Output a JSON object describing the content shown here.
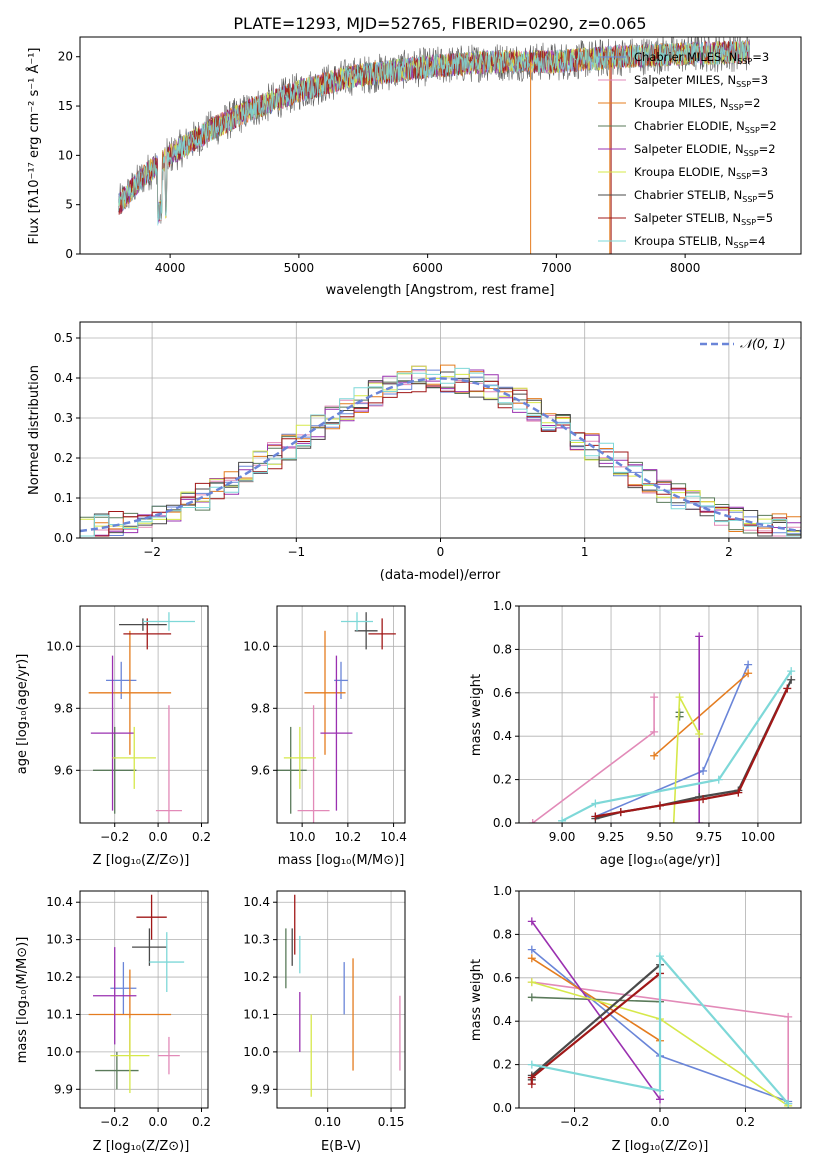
{
  "title": "PLATE=1293, MJD=52765, FIBERID=0290, z=0.065",
  "colors": [
    "#6a85d8",
    "#e28ab8",
    "#e47c1f",
    "#5a7a5a",
    "#9a30b0",
    "#d6e84a",
    "#4a4a4a",
    "#a01818",
    "#7ed8d8"
  ],
  "chart_data": [
    {
      "id": "spectrum",
      "type": "line",
      "xlabel": "wavelength [Angstrom, rest frame]",
      "ylabel": "Flux [fλ10⁻¹⁷ erg cm⁻² s⁻¹ Å⁻¹]",
      "xlim": [
        3300,
        8900
      ],
      "ylim": [
        0,
        22
      ],
      "xticks": [
        4000,
        5000,
        6000,
        7000,
        8000
      ],
      "yticks": [
        0,
        5,
        10,
        15,
        20
      ],
      "legend_position": "right",
      "continuum_x": [
        3600,
        3800,
        4000,
        4300,
        4600,
        5000,
        5400,
        6000,
        6500,
        7000,
        7500,
        8000,
        8500
      ],
      "continuum_y": [
        5.0,
        8.0,
        10.0,
        12.5,
        14.5,
        16.5,
        18.0,
        19.0,
        19.5,
        19.5,
        20.0,
        20.3,
        20.5
      ],
      "series": [
        {
          "name": "Chabrier MILES, N_SSP=3",
          "label_main": "Chabrier MILES, N",
          "label_sub": "SSP",
          "label_end": "=3"
        },
        {
          "name": "Salpeter MILES, N_SSP=3",
          "label_main": "Salpeter MILES, N",
          "label_sub": "SSP",
          "label_end": "=3"
        },
        {
          "name": "Kroupa MILES, N_SSP=2",
          "label_main": "Kroupa MILES, N",
          "label_sub": "SSP",
          "label_end": "=2"
        },
        {
          "name": "Chabrier ELODIE, N_SSP=2",
          "label_main": "Chabrier ELODIE, N",
          "label_sub": "SSP",
          "label_end": "=2"
        },
        {
          "name": "Salpeter ELODIE, N_SSP=2",
          "label_main": "Salpeter ELODIE, N",
          "label_sub": "SSP",
          "label_end": "=2"
        },
        {
          "name": "Kroupa ELODIE, N_SSP=3",
          "label_main": "Kroupa ELODIE, N",
          "label_sub": "SSP",
          "label_end": "=3"
        },
        {
          "name": "Chabrier STELIB, N_SSP=5",
          "label_main": "Chabrier STELIB, N",
          "label_sub": "SSP",
          "label_end": "=5"
        },
        {
          "name": "Salpeter STELIB, N_SSP=5",
          "label_main": "Salpeter STELIB, N",
          "label_sub": "SSP",
          "label_end": "=5"
        },
        {
          "name": "Kroupa STELIB, N_SSP=4",
          "label_main": "Kroupa STELIB, N",
          "label_sub": "SSP",
          "label_end": "=4"
        }
      ]
    },
    {
      "id": "residuals",
      "type": "line",
      "xlabel": "(data-model)/error",
      "ylabel": "Normed distribution",
      "xlim": [
        -2.5,
        2.5
      ],
      "ylim": [
        0,
        0.54
      ],
      "xticks": [
        -2,
        -1,
        0,
        1,
        2
      ],
      "yticks": [
        0.0,
        0.1,
        0.2,
        0.3,
        0.4,
        0.5
      ],
      "grid": true,
      "legend": "𝒩(0, 1)",
      "legend_position": "top-right",
      "bin_width": 0.1,
      "bin_start": -2.5,
      "reference": "normal(0,1)"
    },
    {
      "id": "age_vs_Z",
      "type": "scatter",
      "xlabel": "Z [log₁₀(Z/Z⊙)]",
      "ylabel": "age  [log₁₀(age/yr)]",
      "xlim": [
        -0.36,
        0.23
      ],
      "ylim": [
        9.43,
        10.13
      ],
      "xticks": [
        -0.2,
        0.0,
        0.2
      ],
      "yticks": [
        9.6,
        9.8,
        10.0
      ],
      "grid": true,
      "points": [
        {
          "x": -0.17,
          "y": 9.89,
          "xerr": 0.07,
          "yerr": 0.06
        },
        {
          "x": 0.05,
          "y": 9.47,
          "xerr": 0.06,
          "yerr": 0.34
        },
        {
          "x": -0.13,
          "y": 9.85,
          "xerr": 0.19,
          "yerr": 0.2
        },
        {
          "x": -0.2,
          "y": 9.6,
          "xerr": 0.1,
          "yerr": 0.14
        },
        {
          "x": -0.21,
          "y": 9.72,
          "xerr": 0.1,
          "yerr": 0.25
        },
        {
          "x": -0.11,
          "y": 9.64,
          "xerr": 0.1,
          "yerr": 0.1
        },
        {
          "x": -0.07,
          "y": 10.07,
          "xerr": 0.11,
          "yerr": 0.02
        },
        {
          "x": -0.05,
          "y": 10.04,
          "xerr": 0.11,
          "yerr": 0.05
        },
        {
          "x": 0.05,
          "y": 10.08,
          "xerr": 0.12,
          "yerr": 0.03
        }
      ]
    },
    {
      "id": "age_vs_mass",
      "type": "scatter",
      "xlabel": "mass [log₁₀(M/M⊙)]",
      "ylabel": "",
      "xlim": [
        9.89,
        10.45
      ],
      "ylim": [
        9.43,
        10.13
      ],
      "xticks": [
        10.0,
        10.2,
        10.4
      ],
      "yticks": [
        9.6,
        9.8,
        10.0
      ],
      "grid": true,
      "points": [
        {
          "x": 10.17,
          "y": 9.89,
          "xerr": 0.03,
          "yerr": 0.06
        },
        {
          "x": 10.05,
          "y": 9.47,
          "xerr": 0.07,
          "yerr": 0.34
        },
        {
          "x": 10.1,
          "y": 9.85,
          "xerr": 0.09,
          "yerr": 0.2
        },
        {
          "x": 9.95,
          "y": 9.6,
          "xerr": 0.07,
          "yerr": 0.14
        },
        {
          "x": 10.15,
          "y": 9.72,
          "xerr": 0.07,
          "yerr": 0.25
        },
        {
          "x": 9.99,
          "y": 9.64,
          "xerr": 0.07,
          "yerr": 0.1
        },
        {
          "x": 10.28,
          "y": 10.05,
          "xerr": 0.05,
          "yerr": 0.06
        },
        {
          "x": 10.35,
          "y": 10.04,
          "xerr": 0.06,
          "yerr": 0.05
        },
        {
          "x": 10.24,
          "y": 10.08,
          "xerr": 0.07,
          "yerr": 0.03
        }
      ]
    },
    {
      "id": "weight_vs_age",
      "type": "line",
      "xlabel": "age  [log₁₀(age/yr)]",
      "ylabel": "mass weight",
      "xlim": [
        8.78,
        10.22
      ],
      "ylim": [
        0,
        1.0
      ],
      "xticks": [
        9.0,
        9.25,
        9.5,
        9.75,
        10.0
      ],
      "yticks": [
        0.0,
        0.2,
        0.4,
        0.6,
        0.8,
        1.0
      ],
      "grid": true,
      "series": [
        {
          "x": [
            9.17,
            9.72,
            9.95
          ],
          "y": [
            0.03,
            0.24,
            0.73
          ]
        },
        {
          "x": [
            8.85,
            9.47,
            9.47
          ],
          "y": [
            0.0,
            0.42,
            0.58
          ]
        },
        {
          "x": [
            9.47,
            9.95
          ],
          "y": [
            0.31,
            0.69
          ]
        },
        {
          "x": [
            9.6,
            9.6
          ],
          "y": [
            0.49,
            0.51
          ]
        },
        {
          "x": [
            9.7,
            9.7
          ],
          "y": [
            0.86,
            0.0
          ]
        },
        {
          "x": [
            9.57,
            9.6,
            9.7
          ],
          "y": [
            0.0,
            0.58,
            0.41
          ]
        },
        {
          "x": [
            9.17,
            9.3,
            9.5,
            9.7,
            9.9,
            10.17
          ],
          "y": [
            0.02,
            0.05,
            0.08,
            0.12,
            0.15,
            0.66
          ]
        },
        {
          "x": [
            9.17,
            9.3,
            9.5,
            9.72,
            9.9,
            10.15
          ],
          "y": [
            0.03,
            0.05,
            0.08,
            0.11,
            0.14,
            0.62
          ]
        },
        {
          "x": [
            9.0,
            9.17,
            9.8,
            10.17
          ],
          "y": [
            0.01,
            0.09,
            0.2,
            0.7
          ]
        }
      ]
    },
    {
      "id": "mass_vs_Z",
      "type": "scatter",
      "xlabel": "Z [log₁₀(Z/Z⊙)]",
      "ylabel": "mass [log₁₀(M/M⊙)]",
      "xlim": [
        -0.36,
        0.23
      ],
      "ylim": [
        9.85,
        10.43
      ],
      "xticks": [
        -0.2,
        0.0,
        0.2
      ],
      "yticks": [
        9.9,
        10.0,
        10.1,
        10.2,
        10.3,
        10.4
      ],
      "grid": true,
      "points": [
        {
          "x": -0.16,
          "y": 10.17,
          "xerr": 0.06,
          "yerr": 0.07
        },
        {
          "x": 0.05,
          "y": 9.99,
          "xerr": 0.05,
          "yerr": 0.05
        },
        {
          "x": -0.13,
          "y": 10.1,
          "xerr": 0.19,
          "yerr": 0.12
        },
        {
          "x": -0.19,
          "y": 9.95,
          "xerr": 0.1,
          "yerr": 0.05
        },
        {
          "x": -0.2,
          "y": 10.15,
          "xerr": 0.1,
          "yerr": 0.13
        },
        {
          "x": -0.13,
          "y": 9.99,
          "xerr": 0.09,
          "yerr": 0.1
        },
        {
          "x": -0.04,
          "y": 10.28,
          "xerr": 0.08,
          "yerr": 0.05
        },
        {
          "x": -0.03,
          "y": 10.36,
          "xerr": 0.07,
          "yerr": 0.06
        },
        {
          "x": 0.04,
          "y": 10.24,
          "xerr": 0.08,
          "yerr": 0.08
        }
      ]
    },
    {
      "id": "mass_vs_ebv",
      "type": "scatter",
      "xlabel": "E(B-V)",
      "ylabel": "",
      "xlim": [
        0.06,
        0.161
      ],
      "ylim": [
        9.85,
        10.43
      ],
      "xticks": [
        0.1,
        0.15
      ],
      "yticks": [
        9.9,
        10.0,
        10.1,
        10.2,
        10.3,
        10.4
      ],
      "grid": true,
      "points": [
        {
          "x": 0.113,
          "y": 10.17,
          "yerr": 0.07
        },
        {
          "x": 0.157,
          "y": 10.05,
          "yerr": 0.1
        },
        {
          "x": 0.12,
          "y": 10.1,
          "yerr": 0.15
        },
        {
          "x": 0.067,
          "y": 10.25,
          "yerr": 0.08
        },
        {
          "x": 0.078,
          "y": 10.08,
          "yerr": 0.08
        },
        {
          "x": 0.087,
          "y": 9.99,
          "yerr": 0.11
        },
        {
          "x": 0.072,
          "y": 10.28,
          "yerr": 0.05
        },
        {
          "x": 0.074,
          "y": 10.34,
          "yerr": 0.08
        },
        {
          "x": 0.078,
          "y": 10.26,
          "yerr": 0.05
        }
      ]
    },
    {
      "id": "weight_vs_Z",
      "type": "line",
      "xlabel": "Z [log₁₀(Z/Z⊙)]",
      "ylabel": "mass weight",
      "xlim": [
        -0.33,
        0.33
      ],
      "ylim": [
        0,
        1.0
      ],
      "xticks": [
        -0.2,
        0.0,
        0.2
      ],
      "yticks": [
        0.0,
        0.2,
        0.4,
        0.6,
        0.8,
        1.0
      ],
      "grid": true,
      "series": [
        {
          "x": [
            -0.3,
            0.0,
            0.3
          ],
          "y": [
            0.73,
            0.24,
            0.03
          ]
        },
        {
          "x": [
            -0.3,
            0.3,
            0.3
          ],
          "y": [
            0.58,
            0.42,
            0.02
          ]
        },
        {
          "x": [
            -0.3,
            0.0
          ],
          "y": [
            0.69,
            0.31
          ]
        },
        {
          "x": [
            -0.3,
            0.0
          ],
          "y": [
            0.51,
            0.49
          ]
        },
        {
          "x": [
            -0.3,
            0.0
          ],
          "y": [
            0.86,
            0.04
          ]
        },
        {
          "x": [
            -0.3,
            0.0,
            0.3
          ],
          "y": [
            0.58,
            0.41,
            0.01
          ]
        },
        {
          "x": [
            -0.3,
            -0.3,
            0.0
          ],
          "y": [
            0.13,
            0.15,
            0.66
          ]
        },
        {
          "x": [
            -0.3,
            -0.3,
            0.0
          ],
          "y": [
            0.11,
            0.14,
            0.62
          ]
        },
        {
          "x": [
            -0.3,
            0.0,
            0.0,
            0.3
          ],
          "y": [
            0.2,
            0.08,
            0.7,
            0.02
          ]
        }
      ]
    }
  ]
}
